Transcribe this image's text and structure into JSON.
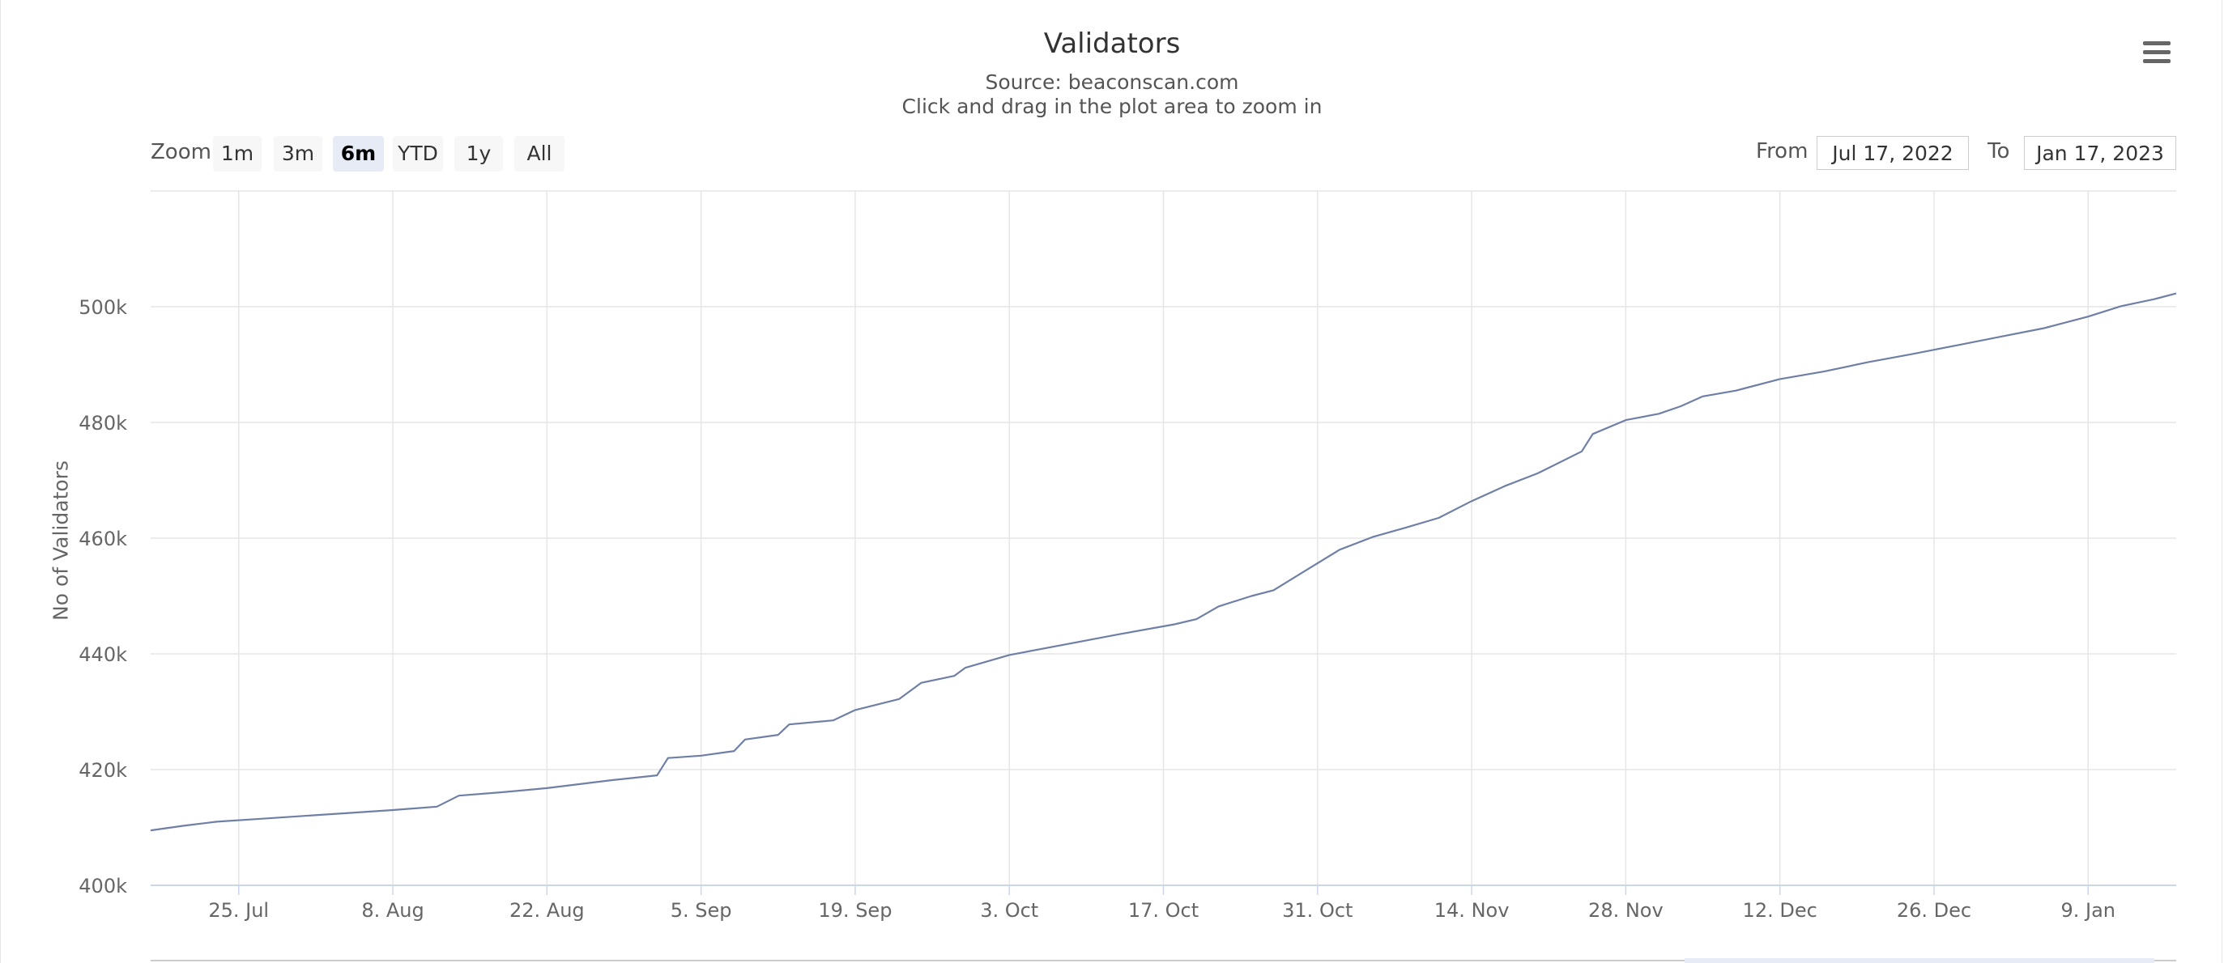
{
  "header": {
    "title": "Validators",
    "subtitle_source": "Source: beaconscan.com",
    "subtitle_hint": "Click and drag in the plot area to zoom in"
  },
  "icons": {
    "menu": "hamburger-menu-icon"
  },
  "range_selector": {
    "zoom_label": "Zoom",
    "buttons": [
      "1m",
      "3m",
      "6m",
      "YTD",
      "1y",
      "All"
    ],
    "selected": "6m",
    "from_label": "From",
    "from_value": "Jul 17, 2022",
    "to_label": "To",
    "to_value": "Jan 17, 2023"
  },
  "colors": {
    "line": "#6f7fa6",
    "grid": "#e6e6e6",
    "axis": "#ccd6eb",
    "active_button": "#e6ebf5"
  },
  "chart_data": {
    "type": "line",
    "title": "Validators",
    "subtitle": "Source: beaconscan.com",
    "ylabel": "No of Validators",
    "xlabel": "",
    "ylim": [
      400000,
      520000
    ],
    "y_ticks": [
      "400k",
      "420k",
      "440k",
      "460k",
      "480k",
      "500k"
    ],
    "y_tick_values": [
      400000,
      420000,
      440000,
      460000,
      480000,
      500000
    ],
    "x_range": [
      "2022-07-17",
      "2023-01-17"
    ],
    "x_ticks": [
      "25. Jul",
      "8. Aug",
      "22. Aug",
      "5. Sep",
      "19. Sep",
      "3. Oct",
      "17. Oct",
      "31. Oct",
      "14. Nov",
      "28. Nov",
      "12. Dec",
      "26. Dec",
      "9. Jan"
    ],
    "x_tick_dates": [
      "2022-07-25",
      "2022-08-08",
      "2022-08-22",
      "2022-09-05",
      "2022-09-19",
      "2022-10-03",
      "2022-10-17",
      "2022-10-31",
      "2022-11-14",
      "2022-11-28",
      "2022-12-12",
      "2022-12-26",
      "2023-01-09"
    ],
    "grid": true,
    "series": [
      {
        "values": [
          [
            "2022-07-17",
            409500
          ],
          [
            "2022-07-20",
            410300
          ],
          [
            "2022-07-23",
            411000
          ],
          [
            "2022-07-27",
            411500
          ],
          [
            "2022-07-31",
            412000
          ],
          [
            "2022-08-04",
            412500
          ],
          [
            "2022-08-08",
            413000
          ],
          [
            "2022-08-12",
            413600
          ],
          [
            "2022-08-14",
            415500
          ],
          [
            "2022-08-18",
            416100
          ],
          [
            "2022-08-22",
            416800
          ],
          [
            "2022-08-25",
            417500
          ],
          [
            "2022-08-28",
            418200
          ],
          [
            "2022-09-01",
            419000
          ],
          [
            "2022-09-02",
            422000
          ],
          [
            "2022-09-05",
            422400
          ],
          [
            "2022-09-08",
            423200
          ],
          [
            "2022-09-09",
            425200
          ],
          [
            "2022-09-12",
            426000
          ],
          [
            "2022-09-13",
            427800
          ],
          [
            "2022-09-17",
            428500
          ],
          [
            "2022-09-19",
            430300
          ],
          [
            "2022-09-23",
            432200
          ],
          [
            "2022-09-25",
            435000
          ],
          [
            "2022-09-28",
            436200
          ],
          [
            "2022-09-29",
            437600
          ],
          [
            "2022-10-03",
            439800
          ],
          [
            "2022-10-08",
            441600
          ],
          [
            "2022-10-13",
            443400
          ],
          [
            "2022-10-18",
            445100
          ],
          [
            "2022-10-20",
            446000
          ],
          [
            "2022-10-22",
            448200
          ],
          [
            "2022-10-25",
            450000
          ],
          [
            "2022-10-27",
            451000
          ],
          [
            "2022-10-30",
            454500
          ],
          [
            "2022-11-02",
            458000
          ],
          [
            "2022-11-05",
            460200
          ],
          [
            "2022-11-08",
            461800
          ],
          [
            "2022-11-11",
            463500
          ],
          [
            "2022-11-14",
            466400
          ],
          [
            "2022-11-17",
            469000
          ],
          [
            "2022-11-20",
            471200
          ],
          [
            "2022-11-24",
            475000
          ],
          [
            "2022-11-25",
            478000
          ],
          [
            "2022-11-28",
            480400
          ],
          [
            "2022-12-01",
            481500
          ],
          [
            "2022-12-03",
            482800
          ],
          [
            "2022-12-05",
            484500
          ],
          [
            "2022-12-08",
            485500
          ],
          [
            "2022-12-12",
            487500
          ],
          [
            "2022-12-16",
            488800
          ],
          [
            "2022-12-20",
            490400
          ],
          [
            "2022-12-24",
            491800
          ],
          [
            "2022-12-28",
            493300
          ],
          [
            "2023-01-01",
            494800
          ],
          [
            "2023-01-05",
            496300
          ],
          [
            "2023-01-09",
            498300
          ],
          [
            "2023-01-12",
            500100
          ],
          [
            "2023-01-15",
            501300
          ],
          [
            "2023-01-17",
            502300
          ]
        ]
      }
    ]
  }
}
